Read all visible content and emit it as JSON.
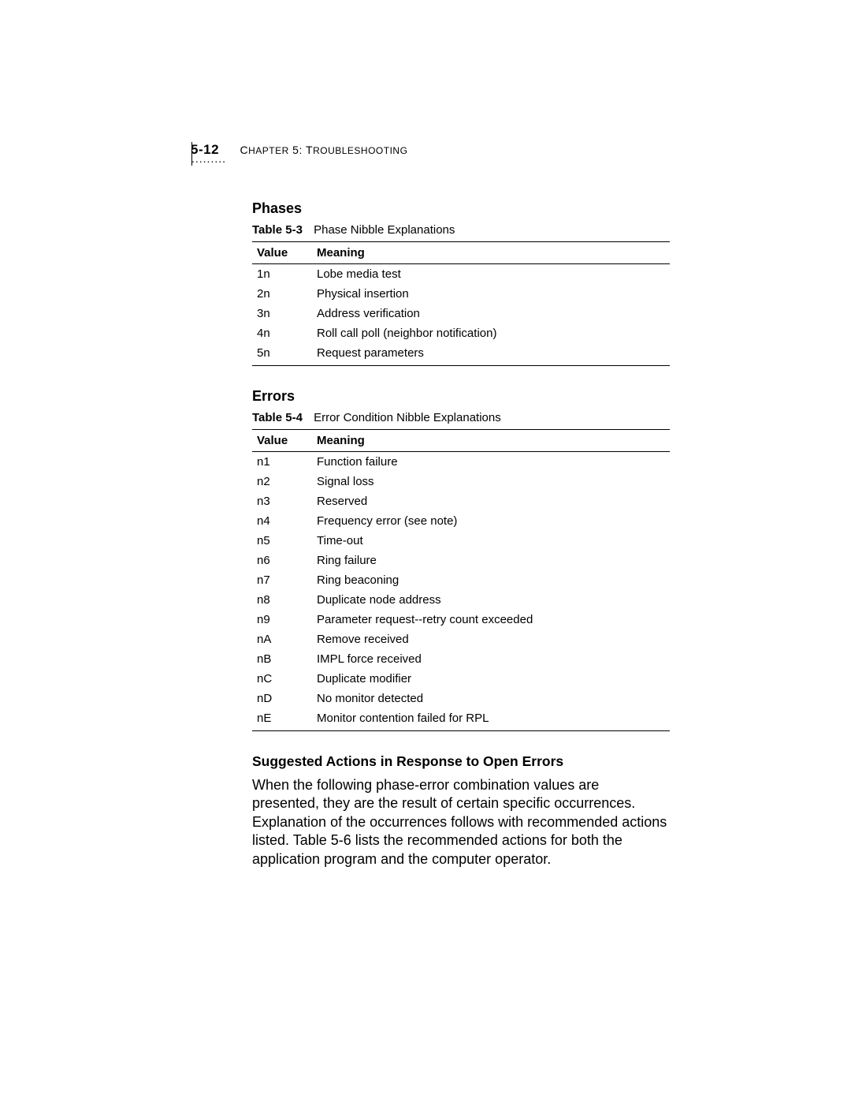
{
  "header": {
    "page_number": "5-12",
    "chapter_label": "Chapter 5: Troubleshooting",
    "dots": "........."
  },
  "section_phases": {
    "heading": "Phases",
    "table_label": "Table 5-3",
    "table_title": "Phase Nibble Explanations",
    "columns": [
      "Value",
      "Meaning"
    ],
    "rows": [
      [
        "1n",
        "Lobe media test"
      ],
      [
        "2n",
        "Physical insertion"
      ],
      [
        "3n",
        "Address verification"
      ],
      [
        "4n",
        "Roll call poll (neighbor notification)"
      ],
      [
        "5n",
        "Request parameters"
      ]
    ]
  },
  "section_errors": {
    "heading": "Errors",
    "table_label": "Table 5-4",
    "table_title": "Error Condition Nibble Explanations",
    "columns": [
      "Value",
      "Meaning"
    ],
    "rows": [
      [
        "n1",
        "Function failure"
      ],
      [
        "n2",
        "Signal loss"
      ],
      [
        "n3",
        "Reserved"
      ],
      [
        "n4",
        "Frequency error (see note)"
      ],
      [
        "n5",
        "Time-out"
      ],
      [
        "n6",
        "Ring failure"
      ],
      [
        "n7",
        "Ring beaconing"
      ],
      [
        "n8",
        "Duplicate node address"
      ],
      [
        "n9",
        "Parameter request--retry count exceeded"
      ],
      [
        "nA",
        "Remove received"
      ],
      [
        "nB",
        "IMPL force received"
      ],
      [
        "nC",
        "Duplicate modifier"
      ],
      [
        "nD",
        "No monitor detected"
      ],
      [
        "nE",
        "Monitor contention failed for RPL"
      ]
    ]
  },
  "section_suggested": {
    "heading": "Suggested Actions in Response to Open Errors",
    "body": "When the following phase-error combination values are presented, they are the result of certain specific occurrences. Explanation of the occurrences follows with recommended actions listed. Table 5-6 lists the recommended actions for both the application program and the computer operator."
  }
}
